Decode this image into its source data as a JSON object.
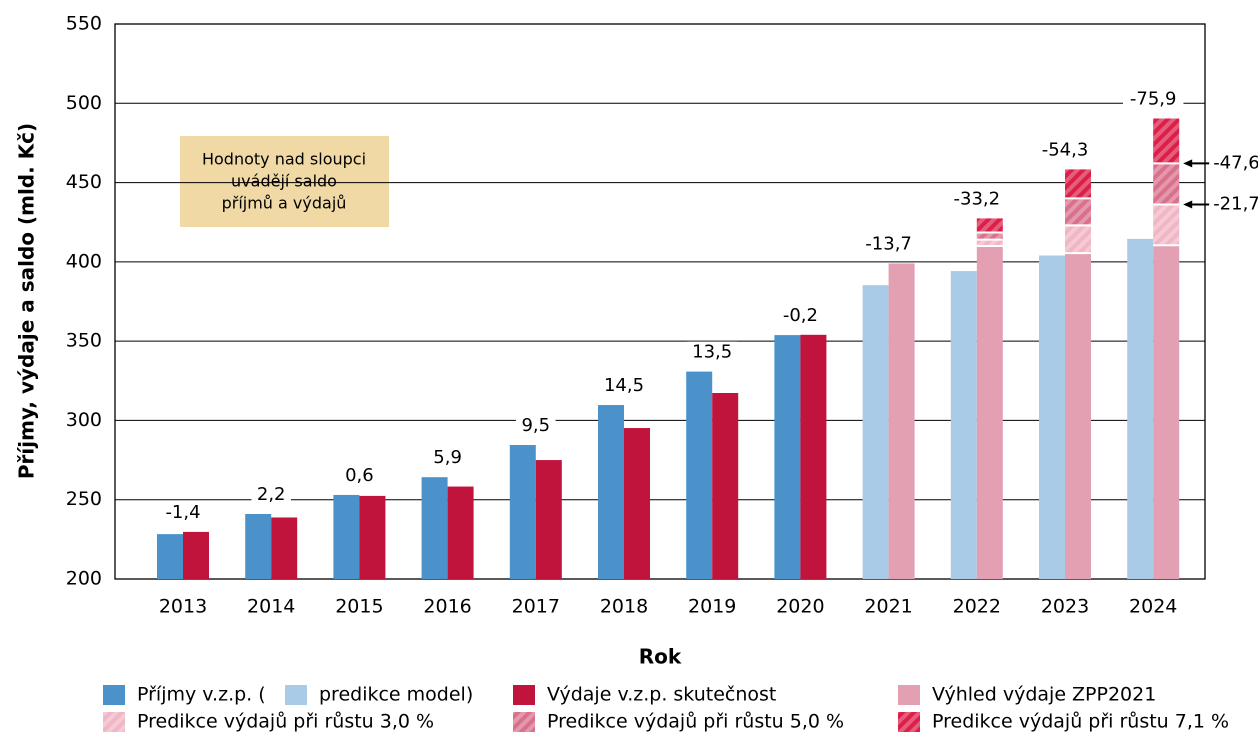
{
  "chart_data": {
    "type": "bar",
    "x_label": "Rok",
    "y_label": "Příjmy, výdaje a saldo (mld. Kč)",
    "categories": [
      "2013",
      "2014",
      "2015",
      "2016",
      "2017",
      "2018",
      "2019",
      "2020",
      "2021",
      "2022",
      "2023",
      "2024"
    ],
    "series": [
      {
        "name": "Příjmy v.z.p. (",
        "color": "#4a92c9",
        "values": [
          228.3,
          241.0,
          253.0,
          264.2,
          284.5,
          309.7,
          330.8,
          353.8,
          null,
          null,
          null,
          null
        ]
      },
      {
        "name": "predikce model)",
        "color": "#a9cbe7",
        "values": [
          null,
          null,
          null,
          null,
          null,
          null,
          null,
          null,
          385.3,
          394.2,
          404.0,
          414.5
        ]
      },
      {
        "name": "Výdaje v.z.p. skutečnost",
        "color": "#c0143c",
        "values": [
          229.7,
          238.8,
          252.4,
          258.3,
          275.0,
          295.2,
          317.3,
          354.0,
          null,
          null,
          null,
          null
        ]
      },
      {
        "name": "Výhled výdaje ZPP2021",
        "color": "#e3a0b2",
        "values": [
          null,
          null,
          null,
          null,
          null,
          null,
          null,
          null,
          399.0,
          410.0,
          405.5,
          410.5
        ]
      },
      {
        "name": "Predikce výdajů při růstu 3,0 %",
        "color": "#f1b6c5",
        "hatch": true,
        "values": [
          null,
          null,
          null,
          null,
          null,
          null,
          null,
          null,
          null,
          4.0,
          17.5,
          25.7
        ]
      },
      {
        "name": "Predikce výdajů při růstu 5,0 %",
        "color": "#d9708c",
        "hatch": true,
        "values": [
          null,
          null,
          null,
          null,
          null,
          null,
          null,
          null,
          null,
          4.5,
          17.0,
          25.9
        ]
      },
      {
        "name": "Predikce výdajů při růstu 7,1 %",
        "color": "#dc1f48",
        "hatch": true,
        "values": [
          null,
          null,
          null,
          null,
          null,
          null,
          null,
          null,
          null,
          8.9,
          18.3,
          28.3
        ]
      }
    ],
    "balance": {
      "values": [
        -1.4,
        2.2,
        0.6,
        5.9,
        9.5,
        14.5,
        13.5,
        -0.2,
        -13.7,
        -33.2,
        -54.3,
        -75.9
      ],
      "value_labels": [
        "-1,4",
        "2,2",
        "0,6",
        "5,9",
        "9,5",
        "14,5",
        "13,5",
        "-0,2",
        "-13,7",
        "-33,2",
        "-54,3",
        "-75,9"
      ]
    },
    "side_labels": {
      "values": [
        -47.6,
        -21.7
      ],
      "value_labels": [
        "-47,6",
        "-21,7"
      ]
    },
    "note": [
      "Hodnoty nad sloupci",
      "uvádějí saldo",
      "příjmů a výdajů"
    ],
    "ylim": [
      200,
      550
    ],
    "yticks": [
      200,
      250,
      300,
      350,
      400,
      450,
      500,
      550
    ],
    "grid": true
  }
}
